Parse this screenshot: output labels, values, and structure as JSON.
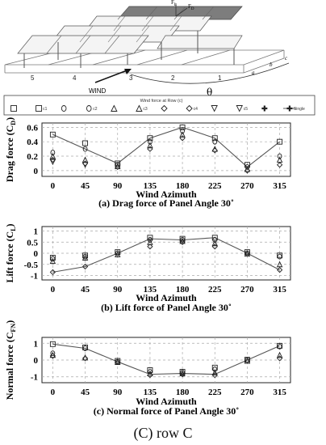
{
  "schematic": {
    "row_numbers": [
      "5",
      "4",
      "3",
      "2",
      "1"
    ],
    "wind_label": "WIND",
    "theta": "θ",
    "fl": "F",
    "fl_sub": "L",
    "fd": "F",
    "fd_sub": "D",
    "row_letters": [
      "a",
      "b",
      "c"
    ]
  },
  "legend": {
    "title": "Wind force at Row (c)",
    "entries": [
      {
        "marker": "square",
        "label": ""
      },
      {
        "marker": "square",
        "label": "c1"
      },
      {
        "marker": "circle",
        "label": ""
      },
      {
        "marker": "circle",
        "label": "c2"
      },
      {
        "marker": "triangle",
        "label": ""
      },
      {
        "marker": "triangle",
        "label": "c3"
      },
      {
        "marker": "diamond",
        "label": ""
      },
      {
        "marker": "diamond",
        "label": "c4"
      },
      {
        "marker": "tridown",
        "label": ""
      },
      {
        "marker": "tridown",
        "label": "c5"
      },
      {
        "marker": "cross",
        "label": ""
      },
      {
        "marker": "cross",
        "label": "Single"
      }
    ]
  },
  "chart_data": [
    {
      "type": "scatter",
      "title": "(a) Drag force of Panel Angle  30˚",
      "xlabel": "Wind Azimuth",
      "ylabel_main": "Drag force (C",
      "ylabel_sub": "D",
      "ylabel_end": ")",
      "x": [
        0,
        45,
        90,
        135,
        180,
        225,
        270,
        315
      ],
      "xlim": [
        -15,
        330
      ],
      "ylim": [
        -0.08,
        0.66
      ],
      "yticks": [
        0,
        0.2,
        0.4,
        0.6
      ],
      "ytick_labels": [
        "0",
        "0.2",
        "0.4",
        "0.6"
      ],
      "line": [
        0.5,
        0.3,
        0.1,
        0.45,
        0.6,
        0.45,
        0.05,
        0.4
      ],
      "points": [
        {
          "x": 0,
          "ys": [
            0.5,
            0.25,
            0.2,
            0.15,
            0.12
          ]
        },
        {
          "x": 45,
          "ys": [
            0.38,
            0.3,
            0.15,
            0.1,
            0.08
          ]
        },
        {
          "x": 90,
          "ys": [
            0.1,
            0.08,
            0.06,
            0.05
          ]
        },
        {
          "x": 135,
          "ys": [
            0.45,
            0.4,
            0.35,
            0.3
          ]
        },
        {
          "x": 180,
          "ys": [
            0.6,
            0.55,
            0.5,
            0.45
          ]
        },
        {
          "x": 225,
          "ys": [
            0.45,
            0.4,
            0.3,
            0.28
          ]
        },
        {
          "x": 270,
          "ys": [
            0.08,
            0.05,
            0.02,
            0.0
          ]
        },
        {
          "x": 315,
          "ys": [
            0.4,
            0.2,
            0.15,
            0.08
          ]
        }
      ]
    },
    {
      "type": "scatter",
      "title": "(b) Lift force of Panel Angle   30˚",
      "xlabel": "Wind Azimuth",
      "ylabel_main": "Lift force (C",
      "ylabel_sub": "L",
      "ylabel_end": ")",
      "x": [
        0,
        45,
        90,
        135,
        180,
        225,
        270,
        315
      ],
      "xlim": [
        -15,
        330
      ],
      "ylim": [
        -1.2,
        1.2
      ],
      "yticks": [
        -1,
        -0.5,
        0,
        0.5,
        1
      ],
      "ytick_labels": [
        "-1",
        "-0.5",
        "0",
        "0.5",
        "1"
      ],
      "line": [
        -0.85,
        -0.6,
        0.0,
        0.65,
        0.6,
        0.7,
        0.0,
        -0.75
      ],
      "points": [
        {
          "x": 0,
          "ys": [
            -0.2,
            -0.25,
            -0.35,
            -0.85
          ]
        },
        {
          "x": 45,
          "ys": [
            -0.1,
            -0.15,
            -0.2,
            -0.6
          ]
        },
        {
          "x": 90,
          "ys": [
            0.05,
            0.0,
            -0.05
          ]
        },
        {
          "x": 135,
          "ys": [
            0.7,
            0.6,
            0.5,
            0.3
          ]
        },
        {
          "x": 180,
          "ys": [
            0.65,
            0.6,
            0.55,
            0.5
          ]
        },
        {
          "x": 225,
          "ys": [
            0.7,
            0.6,
            0.45,
            0.3
          ]
        },
        {
          "x": 270,
          "ys": [
            0.05,
            0.0,
            -0.02
          ]
        },
        {
          "x": 315,
          "ys": [
            -0.1,
            -0.15,
            -0.5,
            -0.75
          ]
        }
      ]
    },
    {
      "type": "scatter",
      "title": "(c) Normal force of Panel Angle  30˚",
      "xlabel": "Wind Azimuth",
      "ylabel_main": "Normal force (C",
      "ylabel_sub": "FN",
      "ylabel_end": ")",
      "x": [
        0,
        45,
        90,
        135,
        180,
        225,
        270,
        315
      ],
      "xlim": [
        -15,
        330
      ],
      "ylim": [
        -1.35,
        1.35
      ],
      "yticks": [
        -1,
        0,
        1
      ],
      "ytick_labels": [
        "-1",
        "0",
        "1"
      ],
      "line": [
        0.95,
        0.7,
        -0.1,
        -0.85,
        -0.8,
        -0.85,
        0.0,
        0.85
      ],
      "points": [
        {
          "x": 0,
          "ys": [
            0.95,
            0.4,
            0.3,
            0.25
          ]
        },
        {
          "x": 45,
          "ys": [
            0.75,
            0.7,
            0.15,
            0.1
          ]
        },
        {
          "x": 90,
          "ys": [
            -0.05,
            -0.1,
            -0.12
          ]
        },
        {
          "x": 135,
          "ys": [
            -0.6,
            -0.7,
            -0.8,
            -0.9
          ]
        },
        {
          "x": 180,
          "ys": [
            -0.7,
            -0.75,
            -0.8,
            -0.85
          ]
        },
        {
          "x": 225,
          "ys": [
            -0.45,
            -0.55,
            -0.75,
            -0.9
          ]
        },
        {
          "x": 270,
          "ys": [
            0.02,
            0.0,
            -0.05
          ]
        },
        {
          "x": 315,
          "ys": [
            0.85,
            0.8,
            0.3,
            0.1
          ]
        }
      ]
    }
  ],
  "caption_main": "(C)",
  "caption_sub": " row C"
}
